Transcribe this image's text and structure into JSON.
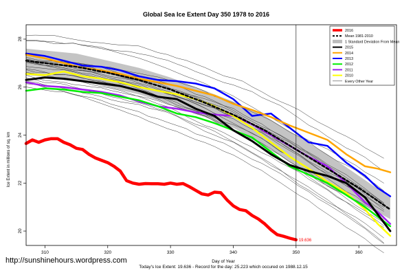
{
  "chart_data": {
    "type": "line",
    "title": "Global Sea Ice Extent Day 350 1978 to 2016",
    "xlabel": "Day of Year",
    "ylabel": "Ice Extent in millions of sq. km",
    "footer": "Today's Ice Extent: 19.636  -  Record for the day: 25.223 which occured on 1988.12.15",
    "xlim": [
      307,
      366
    ],
    "ylim": [
      19.4,
      28.6
    ],
    "x_ticks": [
      310,
      320,
      330,
      340,
      350,
      360
    ],
    "y_ticks": [
      20,
      22,
      24,
      26,
      28
    ],
    "grid": false,
    "marker_line_x": 350,
    "last_value_label": "19.636",
    "last_value_x": 350,
    "last_value_y": 19.636,
    "legend_position": "top-right",
    "legend": [
      {
        "label": "2016",
        "color": "#ff0000",
        "style": "thick"
      },
      {
        "label": "Mean 1981-2010",
        "color": "#000000",
        "style": "dashed"
      },
      {
        "label": "1 Standard Deviation From Mean",
        "color": "#bbbbbb",
        "style": "band"
      },
      {
        "label": "2015",
        "color": "#000000",
        "style": "solid"
      },
      {
        "label": "2014",
        "color": "#ffa500",
        "style": "solid"
      },
      {
        "label": "2013",
        "color": "#0000ff",
        "style": "solid"
      },
      {
        "label": "2012",
        "color": "#00ee00",
        "style": "solid"
      },
      {
        "label": "2011",
        "color": "#a020f0",
        "style": "solid"
      },
      {
        "label": "2010",
        "color": "#ffff00",
        "style": "solid"
      },
      {
        "label": "Every Other Year",
        "color": "#444444",
        "style": "thin"
      }
    ],
    "std_band": {
      "x": [
        307,
        315,
        320,
        325,
        330,
        335,
        340,
        345,
        350,
        355,
        360,
        365
      ],
      "upper": [
        27.6,
        27.4,
        27.1,
        26.8,
        26.4,
        25.9,
        25.4,
        24.8,
        24.0,
        23.2,
        22.3,
        21.4
      ],
      "lower": [
        26.5,
        26.3,
        26.0,
        25.7,
        25.3,
        24.8,
        24.3,
        23.6,
        22.7,
        21.9,
        21.2,
        20.5
      ]
    },
    "series": [
      {
        "name": "Mean 1981-2010",
        "color": "#000000",
        "dash": true,
        "width": 2.5,
        "x": [
          307,
          310,
          315,
          320,
          325,
          330,
          335,
          340,
          345,
          350,
          355,
          360,
          365
        ],
        "y": [
          27.1,
          27.0,
          26.85,
          26.6,
          26.3,
          25.9,
          25.4,
          24.85,
          24.2,
          23.4,
          22.6,
          21.8,
          20.9
        ]
      },
      {
        "name": "2016",
        "color": "#ff0000",
        "width": 4.5,
        "x": [
          307,
          308,
          309,
          310,
          311,
          312,
          313,
          314,
          315,
          316,
          317,
          318,
          319,
          320,
          321,
          322,
          323,
          324,
          325,
          326,
          327,
          328,
          329,
          330,
          331,
          332,
          333,
          334,
          335,
          336,
          337,
          338,
          339,
          340,
          341,
          342,
          343,
          344,
          345,
          346,
          347,
          348,
          349,
          350
        ],
        "y": [
          23.65,
          23.8,
          23.7,
          23.8,
          23.85,
          23.85,
          23.7,
          23.6,
          23.45,
          23.4,
          23.2,
          23.05,
          22.95,
          22.85,
          22.7,
          22.5,
          22.1,
          22.0,
          21.95,
          21.98,
          21.97,
          21.97,
          21.95,
          22.0,
          21.95,
          21.98,
          21.85,
          21.7,
          21.55,
          21.5,
          21.62,
          21.6,
          21.3,
          21.05,
          20.9,
          20.85,
          20.65,
          20.5,
          20.3,
          20.05,
          19.85,
          19.78,
          19.7,
          19.636
        ]
      },
      {
        "name": "2015",
        "color": "#000000",
        "width": 3,
        "x": [
          307,
          310,
          313,
          316,
          319,
          322,
          325,
          328,
          331,
          334,
          337,
          340,
          343,
          346,
          349,
          352,
          355,
          358,
          361,
          363,
          365
        ],
        "y": [
          26.3,
          26.4,
          26.35,
          26.25,
          26.15,
          26.05,
          25.85,
          25.6,
          25.5,
          25.1,
          24.8,
          24.2,
          23.75,
          23.2,
          22.75,
          22.5,
          22.3,
          22.0,
          21.4,
          20.7,
          20.0
        ]
      },
      {
        "name": "2014",
        "color": "#ffa500",
        "width": 2.5,
        "x": [
          307,
          310,
          313,
          316,
          319,
          322,
          325,
          328,
          331,
          334,
          337,
          340,
          343,
          346,
          349,
          352,
          355,
          358,
          361,
          363,
          365
        ],
        "y": [
          27.35,
          27.2,
          27.0,
          26.8,
          26.7,
          26.55,
          26.35,
          26.2,
          26.05,
          25.85,
          25.65,
          25.3,
          25.05,
          24.75,
          24.4,
          24.1,
          23.8,
          23.2,
          22.7,
          22.6,
          22.45
        ]
      },
      {
        "name": "2013",
        "color": "#0000ff",
        "width": 2.5,
        "x": [
          307,
          310,
          313,
          316,
          319,
          322,
          325,
          328,
          331,
          334,
          337,
          340,
          343,
          346,
          349,
          352,
          355,
          358,
          361,
          363,
          365
        ],
        "y": [
          27.4,
          27.3,
          27.1,
          26.9,
          26.85,
          26.7,
          26.45,
          26.3,
          26.25,
          26.15,
          25.95,
          25.5,
          24.8,
          24.9,
          24.3,
          23.7,
          23.55,
          22.85,
          22.3,
          21.8,
          21.45
        ]
      },
      {
        "name": "2012",
        "color": "#00ee00",
        "width": 2.5,
        "x": [
          307,
          310,
          313,
          316,
          319,
          322,
          325,
          328,
          331,
          334,
          337,
          340,
          343,
          346,
          349,
          352,
          355,
          358,
          361,
          363,
          365
        ],
        "y": [
          25.85,
          25.95,
          25.9,
          25.8,
          25.75,
          25.6,
          25.45,
          25.2,
          24.9,
          24.75,
          24.5,
          24.2,
          23.9,
          23.3,
          22.7,
          22.35,
          22.0,
          21.5,
          21.0,
          20.6,
          20.2
        ]
      },
      {
        "name": "2011",
        "color": "#a020f0",
        "width": 2.5,
        "x": [
          307,
          310,
          313,
          316,
          319,
          322,
          325,
          328,
          331,
          334,
          337,
          340,
          343,
          346,
          349,
          352,
          355,
          358,
          361,
          363,
          365
        ],
        "y": [
          26.2,
          26.05,
          26.0,
          25.9,
          25.8,
          25.65,
          25.4,
          25.2,
          25.1,
          24.95,
          24.85,
          24.8,
          24.45,
          24.0,
          23.55,
          23.1,
          22.7,
          22.0,
          21.2,
          20.8,
          20.3
        ]
      },
      {
        "name": "2010",
        "color": "#ffff00",
        "width": 2.5,
        "x": [
          307,
          310,
          313,
          316,
          319,
          322,
          325,
          328,
          331,
          334,
          337,
          340,
          343,
          346,
          349,
          352,
          355,
          358,
          361,
          363,
          365
        ],
        "y": [
          26.55,
          26.5,
          26.65,
          26.45,
          26.35,
          26.2,
          26.0,
          25.85,
          25.7,
          25.5,
          25.2,
          24.8,
          24.3,
          23.7,
          23.1,
          22.6,
          22.05,
          21.6,
          20.9,
          20.3,
          19.8
        ]
      }
    ]
  },
  "watermark": "http://sunshinehours.wordpress.com"
}
